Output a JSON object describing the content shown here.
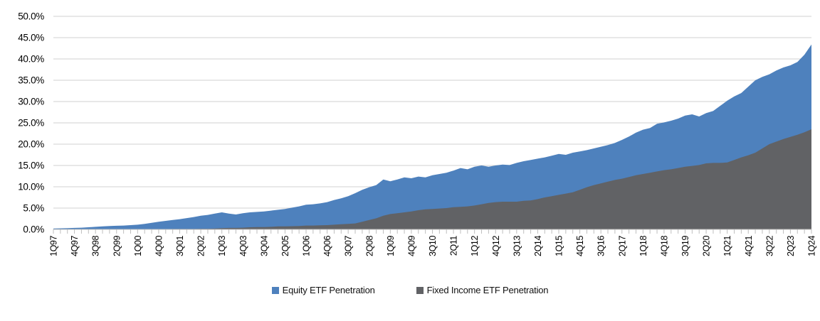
{
  "chart_data": {
    "type": "area",
    "title": "",
    "overlapping": true,
    "grid": true,
    "legend_position": "bottom",
    "n_points": 109,
    "x_label_interval": 3,
    "x_labels": [
      "1Q97",
      "4Q97",
      "3Q98",
      "2Q99",
      "1Q00",
      "4Q00",
      "3Q01",
      "2Q02",
      "1Q03",
      "4Q03",
      "3Q04",
      "2Q05",
      "1Q06",
      "4Q06",
      "3Q07",
      "2Q08",
      "1Q09",
      "4Q09",
      "3Q10",
      "2Q11",
      "1Q12",
      "4Q12",
      "3Q13",
      "2Q14",
      "1Q15",
      "4Q15",
      "3Q16",
      "2Q17",
      "1Q18",
      "4Q18",
      "3Q19",
      "2Q20",
      "1Q21",
      "4Q21",
      "3Q22",
      "2Q23",
      "1Q24"
    ],
    "y_axis": {
      "min": 0,
      "max": 50,
      "step": 5,
      "tick_labels": [
        "0.0%",
        "5.0%",
        "10.0%",
        "15.0%",
        "20.0%",
        "25.0%",
        "30.0%",
        "35.0%",
        "40.0%",
        "45.0%",
        "50.0%"
      ]
    },
    "series": [
      {
        "name": "Equity ETF Penetration",
        "color": "#4E81BD",
        "values": [
          0.2,
          0.25,
          0.3,
          0.35,
          0.4,
          0.5,
          0.6,
          0.7,
          0.8,
          0.85,
          0.9,
          1.0,
          1.1,
          1.3,
          1.55,
          1.8,
          2.0,
          2.2,
          2.4,
          2.65,
          2.9,
          3.2,
          3.4,
          3.7,
          4.0,
          3.7,
          3.5,
          3.8,
          4.0,
          4.1,
          4.2,
          4.4,
          4.6,
          4.8,
          5.1,
          5.4,
          5.8,
          5.9,
          6.1,
          6.4,
          6.9,
          7.3,
          7.8,
          8.5,
          9.3,
          9.9,
          10.4,
          11.7,
          11.3,
          11.7,
          12.2,
          12.0,
          12.4,
          12.2,
          12.7,
          13.0,
          13.3,
          13.8,
          14.4,
          14.1,
          14.7,
          15.0,
          14.7,
          15.0,
          15.2,
          15.1,
          15.6,
          16.0,
          16.3,
          16.6,
          16.9,
          17.3,
          17.7,
          17.5,
          18.0,
          18.3,
          18.6,
          19.0,
          19.4,
          19.8,
          20.3,
          21.0,
          21.8,
          22.7,
          23.4,
          23.8,
          24.8,
          25.1,
          25.5,
          26.0,
          26.7,
          27.0,
          26.5,
          27.3,
          27.8,
          29.0,
          30.2,
          31.2,
          32.0,
          33.5,
          35.0,
          35.8,
          36.4,
          37.3,
          38.0,
          38.5,
          39.3,
          41.0,
          43.4
        ]
      },
      {
        "name": "Fixed Income ETF Penetration",
        "color": "#616265",
        "values": [
          0,
          0,
          0,
          0,
          0,
          0,
          0,
          0,
          0,
          0,
          0,
          0.05,
          0.05,
          0.05,
          0.05,
          0.05,
          0.05,
          0.1,
          0.1,
          0.1,
          0.1,
          0.15,
          0.15,
          0.2,
          0.3,
          0.35,
          0.35,
          0.4,
          0.5,
          0.55,
          0.55,
          0.6,
          0.7,
          0.7,
          0.75,
          0.8,
          0.9,
          0.9,
          0.95,
          1.0,
          1.1,
          1.2,
          1.3,
          1.4,
          1.8,
          2.2,
          2.6,
          3.2,
          3.6,
          3.8,
          4.0,
          4.2,
          4.5,
          4.7,
          4.8,
          4.9,
          5.0,
          5.2,
          5.3,
          5.4,
          5.6,
          5.9,
          6.2,
          6.4,
          6.5,
          6.5,
          6.5,
          6.7,
          6.8,
          7.1,
          7.5,
          7.8,
          8.1,
          8.4,
          8.7,
          9.3,
          9.9,
          10.4,
          10.8,
          11.2,
          11.6,
          11.9,
          12.3,
          12.7,
          13.0,
          13.3,
          13.6,
          13.9,
          14.1,
          14.4,
          14.7,
          14.9,
          15.1,
          15.5,
          15.6,
          15.6,
          15.7,
          16.3,
          16.9,
          17.4,
          18.0,
          19.0,
          20.0,
          20.6,
          21.2,
          21.7,
          22.2,
          22.8,
          23.5
        ]
      }
    ],
    "colors": {
      "gridline": "#D9D9D9",
      "axis": "#BFBFBF",
      "text": "#000000"
    }
  }
}
